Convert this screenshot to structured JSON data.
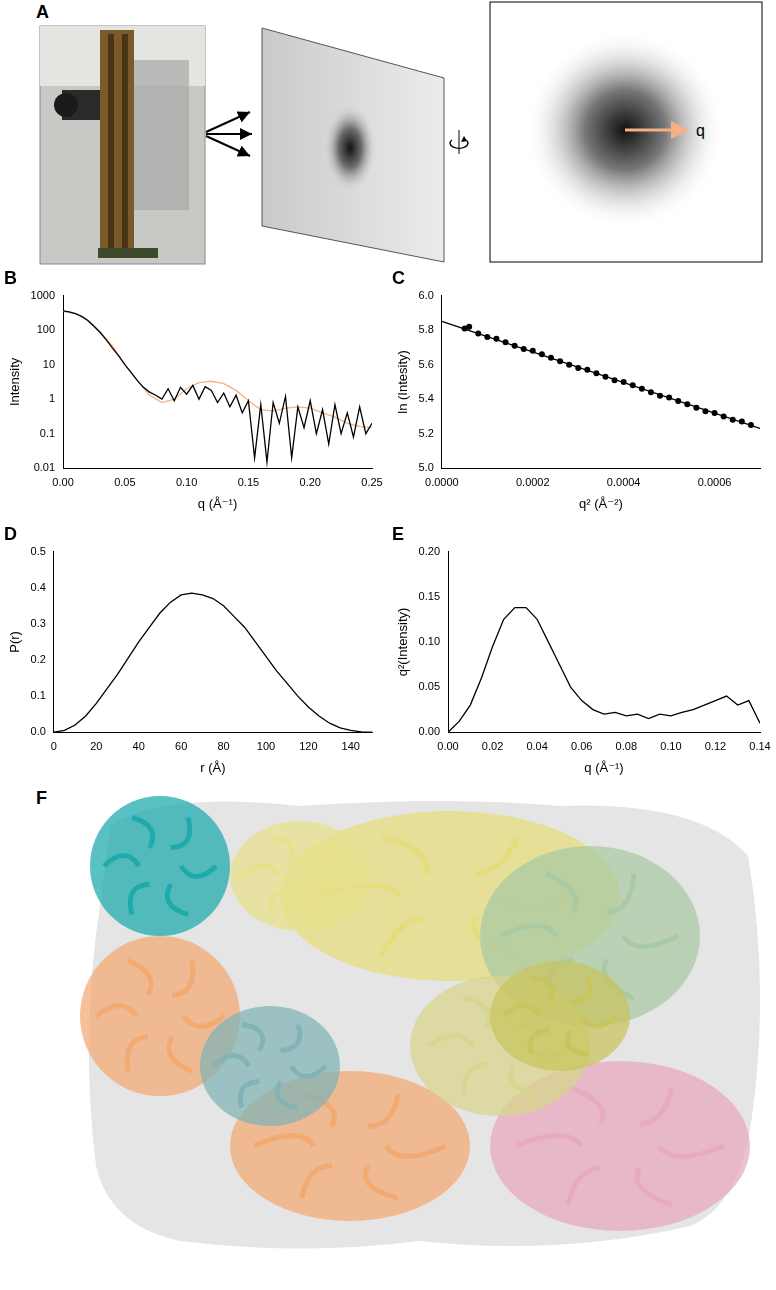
{
  "chart_data": [
    {
      "type": "line",
      "title": "B",
      "x_label": "q (Å⁻¹)",
      "y_label": "Intensity",
      "log": "y",
      "grid": false,
      "xlim": [
        0,
        0.25
      ],
      "xticks": [
        {
          "value": 0,
          "label": "0.00"
        },
        {
          "value": 0.05,
          "label": "0.05"
        },
        {
          "value": 0.1,
          "label": "0.10"
        },
        {
          "value": 0.15,
          "label": "0.15"
        },
        {
          "value": 0.2,
          "label": "0.20"
        },
        {
          "value": 0.25,
          "label": "0.25"
        }
      ],
      "ylim": [
        0.01,
        1000
      ],
      "yticks": [
        0.01,
        0.1,
        1,
        10,
        100,
        1000
      ],
      "series": [
        {
          "color": "#000000",
          "marker": "none",
          "line_style": "solid",
          "x": [
            0,
            0.005,
            0.01,
            0.015,
            0.02,
            0.025,
            0.03,
            0.035,
            0.04,
            0.045,
            0.05,
            0.055,
            0.06,
            0.065,
            0.07,
            0.075,
            0.08,
            0.085,
            0.09,
            0.095,
            0.1,
            0.105,
            0.11,
            0.115,
            0.12,
            0.125,
            0.13,
            0.135,
            0.14,
            0.145,
            0.15,
            0.155,
            0.16,
            0.165,
            0.17,
            0.175,
            0.18,
            0.185,
            0.19,
            0.195,
            0.2,
            0.205,
            0.21,
            0.215,
            0.22,
            0.225,
            0.23,
            0.235,
            0.24,
            0.245,
            0.25
          ],
          "values": [
            360,
            340,
            300,
            250,
            190,
            130,
            85,
            52,
            30,
            18,
            10,
            6,
            3.5,
            2.2,
            1.6,
            1.3,
            1.0,
            2.0,
            0.9,
            2.2,
            1.4,
            2.5,
            1.0,
            2.3,
            1.8,
            0.8,
            1.5,
            0.6,
            1.3,
            0.4,
            0.9,
            0.02,
            0.7,
            0.015,
            0.8,
            0.2,
            1.2,
            0.02,
            0.6,
            0.15,
            0.9,
            0.1,
            0.5,
            0.05,
            0.7,
            0.1,
            0.4,
            0.08,
            0.6,
            0.1,
            0.2
          ]
        },
        {
          "color": "#f4b183",
          "marker": "none",
          "line_style": "solid",
          "x": [
            0,
            0.01,
            0.02,
            0.03,
            0.04,
            0.05,
            0.06,
            0.07,
            0.08,
            0.09,
            0.1,
            0.11,
            0.12,
            0.13,
            0.14,
            0.15,
            0.16,
            0.17,
            0.18,
            0.19,
            0.2,
            0.21,
            0.22,
            0.23,
            0.24,
            0.25
          ],
          "values": [
            350,
            300,
            200,
            90,
            35,
            10,
            3.5,
            1.3,
            0.8,
            1.0,
            2.0,
            3.0,
            3.3,
            2.8,
            1.8,
            0.9,
            0.5,
            0.45,
            0.55,
            0.6,
            0.55,
            0.4,
            0.3,
            0.2,
            0.16,
            0.15
          ]
        }
      ]
    },
    {
      "type": "scatter",
      "title": "C",
      "x_label": "q² (Å⁻²)",
      "y_label": "ln (Intesity)",
      "grid": false,
      "xlim": [
        0,
        0.0007
      ],
      "xticks": [
        {
          "value": 0,
          "label": "0.0000"
        },
        {
          "value": 0.0002,
          "label": "0.0002"
        },
        {
          "value": 0.0004,
          "label": "0.0004"
        },
        {
          "value": 0.0006,
          "label": "0.0006"
        }
      ],
      "ylim": [
        5.0,
        6.0
      ],
      "yticks": [
        {
          "value": 5,
          "label": "5.0"
        },
        {
          "value": 5.2,
          "label": "5.2"
        },
        {
          "value": 5.4,
          "label": "5.4"
        },
        {
          "value": 5.6,
          "label": "5.6"
        },
        {
          "value": 5.8,
          "label": "5.8"
        },
        {
          "value": 6,
          "label": "6.0"
        }
      ],
      "series": [
        {
          "color": "#000000",
          "marker": "circle",
          "line_style": "none",
          "x": [
            5e-05,
            6e-05,
            8e-05,
            0.0001,
            0.00012,
            0.00014,
            0.00016,
            0.00018,
            0.0002,
            0.00022,
            0.00024,
            0.00026,
            0.00028,
            0.0003,
            0.00032,
            0.00034,
            0.00036,
            0.00038,
            0.0004,
            0.00042,
            0.00044,
            0.00046,
            0.00048,
            0.0005,
            0.00052,
            0.00054,
            0.00056,
            0.00058,
            0.0006,
            0.00062,
            0.00064,
            0.00066,
            0.00068
          ],
          "values": [
            5.81,
            5.82,
            5.78,
            5.76,
            5.75,
            5.73,
            5.71,
            5.69,
            5.68,
            5.66,
            5.64,
            5.62,
            5.6,
            5.58,
            5.57,
            5.55,
            5.53,
            5.51,
            5.5,
            5.48,
            5.46,
            5.44,
            5.42,
            5.41,
            5.39,
            5.37,
            5.35,
            5.33,
            5.32,
            5.3,
            5.28,
            5.27,
            5.25
          ]
        },
        {
          "color": "#000000",
          "marker": "none",
          "line_style": "solid",
          "x": [
            0,
            0.0007
          ],
          "values": [
            5.85,
            5.23
          ]
        }
      ]
    },
    {
      "type": "line",
      "title": "D",
      "x_label": "r (Å)",
      "y_label": "P(r)",
      "grid": false,
      "xlim": [
        0,
        150
      ],
      "xticks": [
        0,
        20,
        40,
        60,
        80,
        100,
        120,
        140
      ],
      "ylim": [
        0,
        0.5
      ],
      "yticks": [
        {
          "value": 0,
          "label": "0.0"
        },
        {
          "value": 0.1,
          "label": "0.1"
        },
        {
          "value": 0.2,
          "label": "0.2"
        },
        {
          "value": 0.3,
          "label": "0.3"
        },
        {
          "value": 0.4,
          "label": "0.4"
        },
        {
          "value": 0.5,
          "label": "0.5"
        }
      ],
      "series": [
        {
          "color": "#000000",
          "marker": "none",
          "line_style": "solid",
          "x": [
            0,
            5,
            10,
            15,
            20,
            25,
            30,
            35,
            40,
            45,
            50,
            55,
            60,
            65,
            70,
            75,
            80,
            85,
            90,
            95,
            100,
            105,
            110,
            115,
            120,
            125,
            130,
            135,
            140,
            145,
            150
          ],
          "values": [
            0,
            0.005,
            0.02,
            0.045,
            0.08,
            0.12,
            0.16,
            0.205,
            0.25,
            0.29,
            0.33,
            0.36,
            0.38,
            0.385,
            0.38,
            0.37,
            0.35,
            0.32,
            0.29,
            0.25,
            0.21,
            0.17,
            0.135,
            0.1,
            0.07,
            0.045,
            0.025,
            0.012,
            0.005,
            0.001,
            0
          ]
        }
      ]
    },
    {
      "type": "line",
      "title": "E",
      "x_label": "q (Å⁻¹)",
      "y_label": "q²(Intensity)",
      "grid": false,
      "xlim": [
        0,
        0.14
      ],
      "xticks": [
        {
          "value": 0,
          "label": "0.00"
        },
        {
          "value": 0.02,
          "label": "0.02"
        },
        {
          "value": 0.04,
          "label": "0.04"
        },
        {
          "value": 0.06,
          "label": "0.06"
        },
        {
          "value": 0.08,
          "label": "0.08"
        },
        {
          "value": 0.1,
          "label": "0.10"
        },
        {
          "value": 0.12,
          "label": "0.12"
        },
        {
          "value": 0.14,
          "label": "0.14"
        }
      ],
      "ylim": [
        0,
        0.2
      ],
      "yticks": [
        {
          "value": 0,
          "label": "0.00"
        },
        {
          "value": 0.05,
          "label": "0.05"
        },
        {
          "value": 0.1,
          "label": "0.10"
        },
        {
          "value": 0.15,
          "label": "0.15"
        },
        {
          "value": 0.2,
          "label": "0.20"
        }
      ],
      "series": [
        {
          "color": "#000000",
          "marker": "none",
          "line_style": "solid",
          "x": [
            0,
            0.005,
            0.01,
            0.015,
            0.02,
            0.025,
            0.03,
            0.035,
            0.04,
            0.045,
            0.05,
            0.055,
            0.06,
            0.065,
            0.07,
            0.075,
            0.08,
            0.085,
            0.09,
            0.095,
            0.1,
            0.105,
            0.11,
            0.115,
            0.12,
            0.125,
            0.13,
            0.135,
            0.14
          ],
          "values": [
            0,
            0.012,
            0.03,
            0.06,
            0.095,
            0.125,
            0.138,
            0.138,
            0.125,
            0.1,
            0.075,
            0.05,
            0.035,
            0.025,
            0.02,
            0.022,
            0.018,
            0.02,
            0.015,
            0.02,
            0.018,
            0.022,
            0.025,
            0.03,
            0.035,
            0.04,
            0.03,
            0.035,
            0.01
          ]
        }
      ]
    }
  ],
  "panels": {
    "A": {
      "label": "A",
      "arrow_label": "q"
    },
    "F": {
      "label": "F"
    }
  }
}
